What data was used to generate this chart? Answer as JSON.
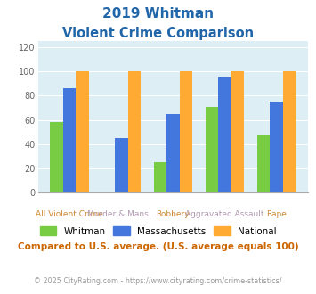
{
  "title_line1": "2019 Whitman",
  "title_line2": "Violent Crime Comparison",
  "cat_top": [
    "",
    "Murder & Mans...",
    "",
    "Aggravated Assault",
    ""
  ],
  "cat_bot": [
    "All Violent Crime",
    "",
    "Robbery",
    "",
    "Rape"
  ],
  "cat_top_color": "#b09ab0",
  "cat_bot_color": "#cc8833",
  "whitman": [
    58,
    0,
    25,
    71,
    47
  ],
  "massachusetts": [
    86,
    45,
    65,
    96,
    75
  ],
  "national": [
    100,
    100,
    100,
    100,
    100
  ],
  "color_whitman": "#77cc44",
  "color_massachusetts": "#4477dd",
  "color_national": "#ffaa33",
  "color_title": "#2266aa",
  "color_bg": "#ddeef5",
  "color_note": "#cc6600",
  "color_footer": "#999999",
  "ylabel_vals": [
    0,
    20,
    40,
    60,
    80,
    100,
    120
  ],
  "ylim": [
    0,
    125
  ],
  "note_text": "Compared to U.S. average. (U.S. average equals 100)",
  "footer_text": "© 2025 CityRating.com - https://www.cityrating.com/crime-statistics/",
  "legend_labels": [
    "Whitman",
    "Massachusetts",
    "National"
  ]
}
